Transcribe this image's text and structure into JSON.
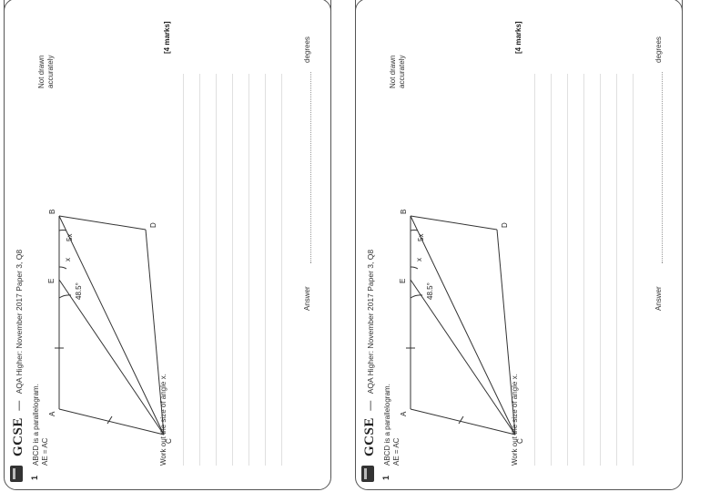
{
  "card": {
    "gcse": "GCSE",
    "dash": "—",
    "paper": "AQA Higher: November 2017 Paper 3, Q8",
    "qnum": "1",
    "line1": "ABCD is a parallelogram.",
    "line2": "AE = AC",
    "note1": "Not drawn",
    "note2": "accurately",
    "work": "Work out the size of angle x.",
    "marks": "[4 marks]",
    "answer": "Answer",
    "degrees": "degrees",
    "labels": {
      "A": "A",
      "B": "B",
      "C": "C",
      "D": "D",
      "E": "E",
      "x": "x",
      "fivex": "5x",
      "angle": "48.5°"
    }
  }
}
